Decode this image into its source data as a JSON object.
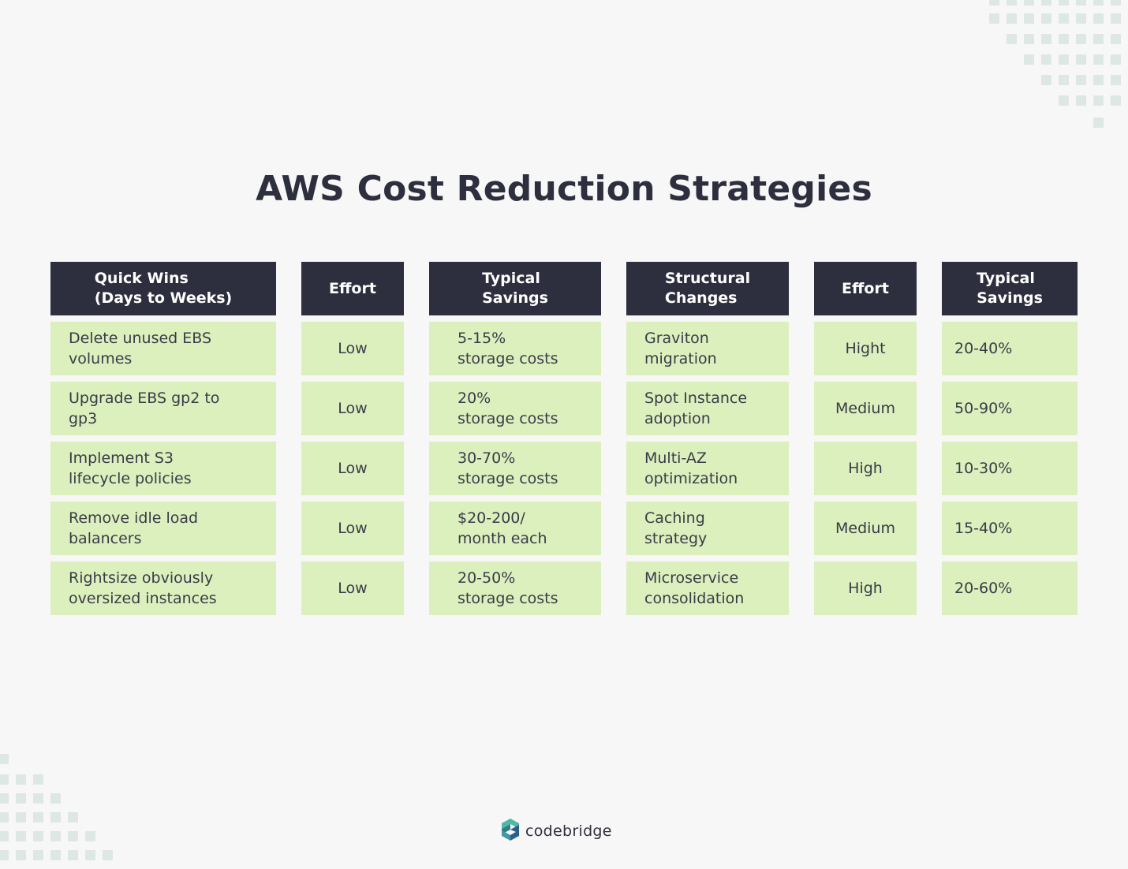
{
  "title": "AWS Cost Reduction Strategies",
  "table": {
    "headers": {
      "quick_wins": "Quick Wins\n(Days to Weeks)",
      "effort_1": "Effort",
      "savings_1": "Typical\nSavings",
      "structural": "Structural\nChanges",
      "effort_2": "Effort",
      "savings_2": "Typical\nSavings"
    },
    "rows": [
      {
        "quick_win": "Delete unused EBS\nvolumes",
        "quick_effort": "Low",
        "quick_savings": "5-15%\nstorage costs",
        "structural": "Graviton\nmigration",
        "structural_effort": "Hight",
        "structural_savings": "20-40%"
      },
      {
        "quick_win": "Upgrade EBS gp2 to\ngp3",
        "quick_effort": "Low",
        "quick_savings": "20%\nstorage costs",
        "structural": "Spot Instance\nadoption",
        "structural_effort": "Medium",
        "structural_savings": "50-90%"
      },
      {
        "quick_win": "Implement S3\nlifecycle policies",
        "quick_effort": "Low",
        "quick_savings": "30-70%\nstorage costs",
        "structural": "Multi-AZ\noptimization",
        "structural_effort": "High",
        "structural_savings": "10-30%"
      },
      {
        "quick_win": "Remove idle load\nbalancers",
        "quick_effort": "Low",
        "quick_savings": "$20-200/\nmonth each",
        "structural": "Caching\nstrategy",
        "structural_effort": "Medium",
        "structural_savings": "15-40%"
      },
      {
        "quick_win": "Rightsize obviously\noversized instances",
        "quick_effort": "Low",
        "quick_savings": "20-50%\nstorage costs",
        "structural": "Microservice\nconsolidation",
        "structural_effort": "High",
        "structural_savings": "20-60%"
      }
    ]
  },
  "brand": {
    "name": "codebridge",
    "logo_icon": "codebridge-logo-icon"
  },
  "colors": {
    "header_bg": "#2e2f3e",
    "cell_bg": "#dbf0bd",
    "page_bg": "#f7f7f7",
    "decor": "#dde8e6"
  }
}
